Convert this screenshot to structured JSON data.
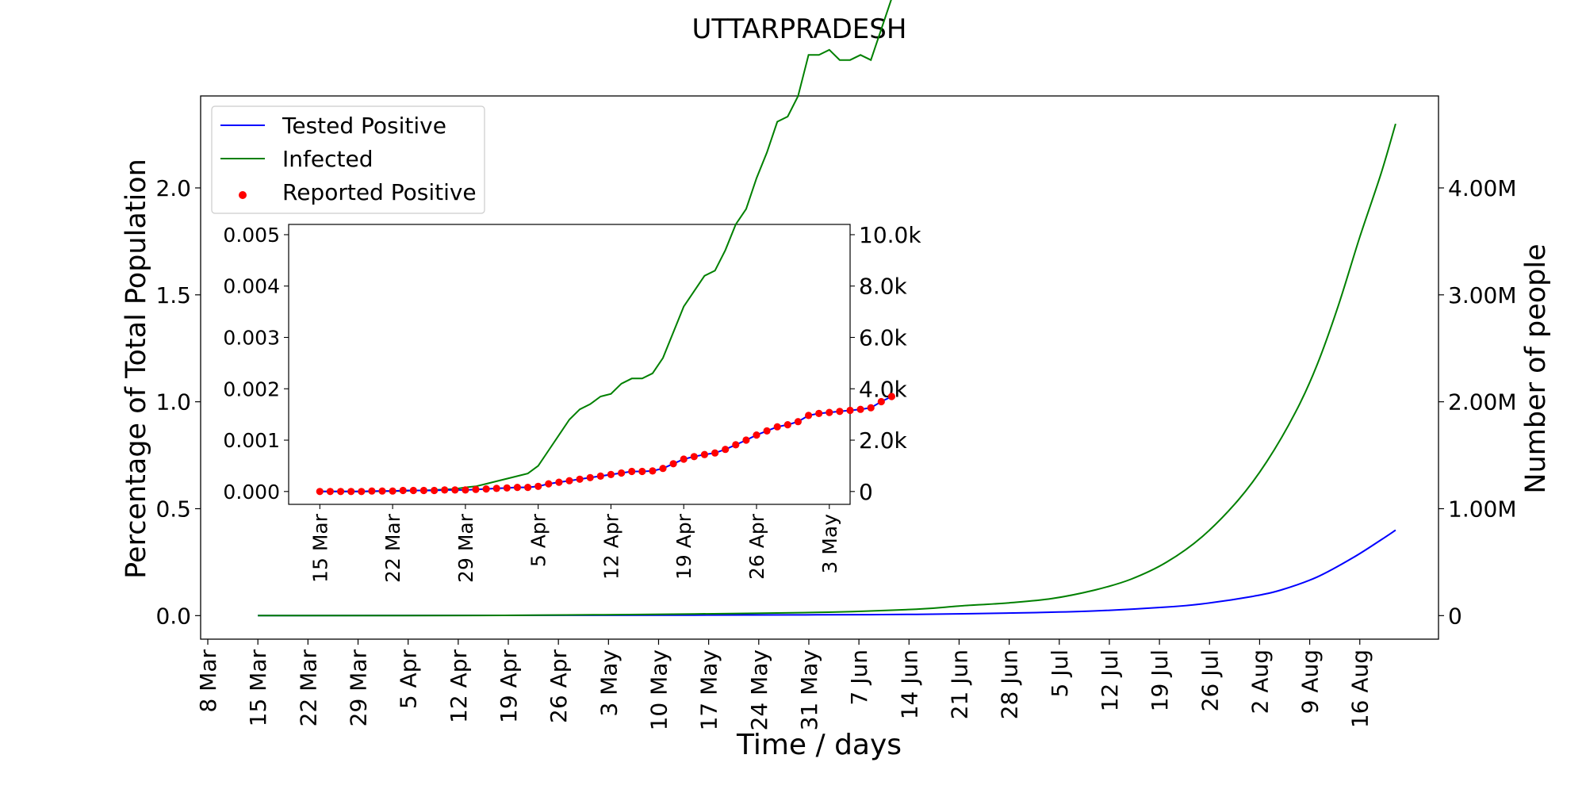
{
  "chart_data": [
    {
      "type": "line",
      "title": "UTTARPRADESH",
      "xlabel": "Time / days",
      "ylabel": "Percentage of Total Population",
      "ylabel_right": "Number of people",
      "x_ticks": [
        "8 Mar",
        "15 Mar",
        "22 Mar",
        "29 Mar",
        "5 Apr",
        "12 Apr",
        "19 Apr",
        "26 Apr",
        "3 May",
        "10 May",
        "17 May",
        "24 May",
        "31 May",
        "7 Jun",
        "14 Jun",
        "21 Jun",
        "28 Jun",
        "5 Jul",
        "12 Jul",
        "19 Jul",
        "26 Jul",
        "2 Aug",
        "9 Aug",
        "16 Aug"
      ],
      "y_ticks": [
        "0.0",
        "0.5",
        "1.0",
        "1.5",
        "2.0"
      ],
      "y_ticks_right": [
        "0",
        "1.00M",
        "2.00M",
        "3.00M",
        "4.00M"
      ],
      "xlim": [
        "2020-03-07",
        "2020-08-27"
      ],
      "ylim": [
        -0.11,
        2.43
      ],
      "ylim_right": [
        -220000,
        4860000
      ],
      "grid": false,
      "legend": {
        "position": "top-left",
        "entries": [
          {
            "label": "Tested Positive",
            "color": "#0000ff",
            "kind": "line"
          },
          {
            "label": "Infected",
            "color": "#008000",
            "kind": "line"
          },
          {
            "label": "Reported Positive",
            "color": "#ff0000",
            "kind": "marker"
          }
        ]
      },
      "series": [
        {
          "name": "Tested Positive",
          "color": "#0000ff",
          "points": [
            [
              "2020-03-15",
              0.0
            ],
            [
              "2020-04-15",
              0.0012
            ],
            [
              "2020-05-15",
              0.0025
            ],
            [
              "2020-06-01",
              0.004
            ],
            [
              "2020-06-15",
              0.006
            ],
            [
              "2020-07-01",
              0.014
            ],
            [
              "2020-07-10",
              0.022
            ],
            [
              "2020-07-20",
              0.04
            ],
            [
              "2020-07-25",
              0.055
            ],
            [
              "2020-08-01",
              0.09
            ],
            [
              "2020-08-05",
              0.12
            ],
            [
              "2020-08-10",
              0.18
            ],
            [
              "2020-08-15",
              0.27
            ],
            [
              "2020-08-19",
              0.355
            ],
            [
              "2020-08-21",
              0.4
            ]
          ]
        },
        {
          "name": "Infected",
          "color": "#008000",
          "points": [
            [
              "2020-03-15",
              0.0
            ],
            [
              "2020-04-15",
              0.001
            ],
            [
              "2020-05-01",
              0.004
            ],
            [
              "2020-05-15",
              0.008
            ],
            [
              "2020-06-01",
              0.015
            ],
            [
              "2020-06-15",
              0.03
            ],
            [
              "2020-06-21",
              0.045
            ],
            [
              "2020-06-28",
              0.06
            ],
            [
              "2020-07-04",
              0.08
            ],
            [
              "2020-07-10",
              0.12
            ],
            [
              "2020-07-15",
              0.17
            ],
            [
              "2020-07-20",
              0.25
            ],
            [
              "2020-07-25",
              0.37
            ],
            [
              "2020-07-30",
              0.54
            ],
            [
              "2020-08-03",
              0.72
            ],
            [
              "2020-08-07",
              0.95
            ],
            [
              "2020-08-10",
              1.17
            ],
            [
              "2020-08-13",
              1.45
            ],
            [
              "2020-08-16",
              1.77
            ],
            [
              "2020-08-19",
              2.07
            ],
            [
              "2020-08-21",
              2.3
            ]
          ]
        }
      ]
    },
    {
      "type": "line",
      "inset": true,
      "x_ticks": [
        "15 Mar",
        "22 Mar",
        "29 Mar",
        "5 Apr",
        "12 Apr",
        "19 Apr",
        "26 Apr",
        "3 May"
      ],
      "y_ticks": [
        "0.000",
        "0.001",
        "0.002",
        "0.003",
        "0.004",
        "0.005"
      ],
      "y_ticks_right": [
        "0",
        "2.0k",
        "4.0k",
        "6.0k",
        "8.0k",
        "10.0k"
      ],
      "xlim": [
        "2020-03-12",
        "2020-05-05"
      ],
      "ylim": [
        -0.00025,
        0.0052
      ],
      "ylim_right": [
        -500,
        10400
      ],
      "infected": [
        0,
        0,
        0,
        0,
        0,
        0,
        1e-05,
        1e-05,
        1e-05,
        2e-05,
        2e-05,
        3e-05,
        4e-05,
        5e-05,
        8e-05,
        0.0001,
        0.00015,
        0.0002,
        0.00025,
        0.0003,
        0.00035,
        0.0005,
        0.0008,
        0.0011,
        0.0014,
        0.0016,
        0.0017,
        0.00185,
        0.0019,
        0.0021,
        0.0022,
        0.0022,
        0.0023,
        0.0026,
        0.0031,
        0.0036,
        0.0039,
        0.0042,
        0.0043,
        0.0047,
        0.0052,
        0.0055,
        0.0061,
        0.0066,
        0.0072,
        0.0073,
        0.0077,
        0.0085,
        0.0085,
        0.0086,
        0.0084,
        0.0084,
        0.0085,
        0.0084,
        0.009,
        0.0096
      ],
      "tested_positive": [
        0,
        0,
        0,
        0,
        0,
        1e-05,
        1e-05,
        1e-05,
        2e-05,
        2e-05,
        2e-05,
        2e-05,
        3e-05,
        3e-05,
        3e-05,
        4e-05,
        5e-05,
        6e-05,
        7e-05,
        8e-05,
        8e-05,
        0.0001,
        0.00015,
        0.00018,
        0.00021,
        0.00024,
        0.00027,
        0.0003,
        0.00033,
        0.00036,
        0.00039,
        0.00039,
        0.0004,
        0.00045,
        0.00054,
        0.00063,
        0.00068,
        0.00072,
        0.00075,
        0.00082,
        0.00091,
        0.001,
        0.0011,
        0.00118,
        0.00126,
        0.0013,
        0.00136,
        0.00148,
        0.00152,
        0.00154,
        0.00156,
        0.00158,
        0.0016,
        0.00163,
        0.00175,
        0.00185
      ],
      "reported_positive": [
        0,
        0,
        0,
        0,
        0,
        1e-05,
        1e-05,
        1e-05,
        2e-05,
        2e-05,
        2e-05,
        2e-05,
        3e-05,
        3e-05,
        3e-05,
        4e-05,
        5e-05,
        6e-05,
        7e-05,
        8e-05,
        8e-05,
        0.0001,
        0.00015,
        0.00018,
        0.00021,
        0.00024,
        0.00027,
        0.0003,
        0.00033,
        0.00036,
        0.00039,
        0.00039,
        0.0004,
        0.00045,
        0.00054,
        0.00063,
        0.00068,
        0.00072,
        0.00075,
        0.00082,
        0.00091,
        0.001,
        0.0011,
        0.00118,
        0.00126,
        0.0013,
        0.00136,
        0.00148,
        0.00152,
        0.00154,
        0.00156,
        0.00158,
        0.0016,
        0.00163,
        0.00175,
        0.00185
      ]
    }
  ]
}
